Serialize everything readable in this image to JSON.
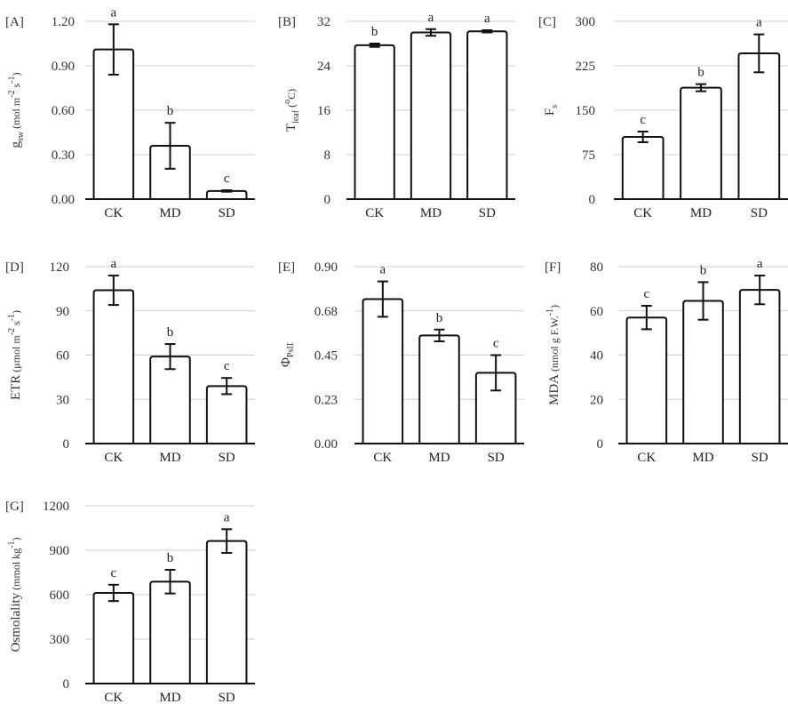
{
  "chart_data": [
    {
      "type": "bar",
      "panel_label": "[A]",
      "ylabel": {
        "main": "g",
        "sub": "sw",
        "unit": " (mol m",
        "sup1": "-2",
        "mid": " s",
        "sup2": "-1",
        "end": ")"
      },
      "categories": [
        "CK",
        "MD",
        "SD"
      ],
      "values": [
        1.01,
        0.36,
        0.055
      ],
      "errors": [
        0.17,
        0.155,
        0.005
      ],
      "significance": [
        "a",
        "b",
        "c"
      ],
      "ylim": [
        0,
        1.2
      ],
      "yticks": [
        "0.00",
        "0.30",
        "0.60",
        "0.90",
        "1.20"
      ],
      "grid": true
    },
    {
      "type": "bar",
      "panel_label": "[B]",
      "ylabel": {
        "main": "T",
        "sub": "leaf",
        "unit": " (",
        "sup1": "o",
        "mid": "C",
        "sup2": "",
        "end": ")"
      },
      "categories": [
        "CK",
        "MD",
        "SD"
      ],
      "values": [
        27.7,
        30.0,
        30.2
      ],
      "errors": [
        0.3,
        0.6,
        0.2
      ],
      "significance": [
        "b",
        "a",
        "a"
      ],
      "ylim": [
        0,
        32
      ],
      "yticks": [
        "0",
        "8",
        "16",
        "24",
        "32"
      ],
      "grid": true
    },
    {
      "type": "bar",
      "panel_label": "[C]",
      "ylabel": {
        "main": "F",
        "sub": "s",
        "unit": "",
        "sup1": "",
        "mid": "",
        "sup2": "",
        "end": ""
      },
      "categories": [
        "CK",
        "MD",
        "SD"
      ],
      "values": [
        105,
        188,
        246
      ],
      "errors": [
        9,
        6,
        32
      ],
      "significance": [
        "c",
        "b",
        "a"
      ],
      "ylim": [
        0,
        300
      ],
      "yticks": [
        "0",
        "75",
        "150",
        "225",
        "300"
      ],
      "grid": true
    },
    {
      "type": "bar",
      "panel_label": "[D]",
      "ylabel": {
        "main": "ETR",
        "sub": "",
        "unit": " (μmol m",
        "sup1": "-2",
        "mid": " s",
        "sup2": "-1",
        "end": ")"
      },
      "categories": [
        "CK",
        "MD",
        "SD"
      ],
      "values": [
        104,
        59,
        39
      ],
      "errors": [
        10,
        8.5,
        5.5
      ],
      "significance": [
        "a",
        "b",
        "c"
      ],
      "ylim": [
        0,
        120
      ],
      "yticks": [
        "0",
        "30",
        "60",
        "90",
        "120"
      ],
      "grid": true
    },
    {
      "type": "bar",
      "panel_label": "[E]",
      "ylabel": {
        "main": "Φ",
        "sub": "PsII",
        "unit": "",
        "sup1": "",
        "mid": "",
        "sup2": "",
        "end": ""
      },
      "categories": [
        "CK",
        "MD",
        "SD"
      ],
      "values": [
        0.735,
        0.55,
        0.36
      ],
      "errors": [
        0.09,
        0.03,
        0.09
      ],
      "significance": [
        "a",
        "b",
        "c"
      ],
      "ylim": [
        0,
        0.9
      ],
      "yticks": [
        "0.00",
        "0.23",
        "0.45",
        "0.68",
        "0.90"
      ],
      "grid": true
    },
    {
      "type": "bar",
      "panel_label": "[F]",
      "ylabel": {
        "main": "MDA",
        "sub": "",
        "unit": " (nmol g F.W.",
        "sup1": "-1",
        "mid": "",
        "sup2": "",
        "end": ")"
      },
      "categories": [
        "CK",
        "MD",
        "SD"
      ],
      "values": [
        57,
        64.5,
        69.5
      ],
      "errors": [
        5.3,
        8.5,
        6.5
      ],
      "significance": [
        "c",
        "b",
        "a"
      ],
      "ylim": [
        0,
        80
      ],
      "yticks": [
        "0",
        "20",
        "40",
        "60",
        "80"
      ],
      "grid": true
    },
    {
      "type": "bar",
      "panel_label": "[G]",
      "ylabel": {
        "main": "Osmolality",
        "sub": "",
        "unit": " (mmol kg",
        "sup1": "-1",
        "mid": "",
        "sup2": "",
        "end": ")"
      },
      "categories": [
        "CK",
        "MD",
        "SD"
      ],
      "values": [
        612,
        688,
        962
      ],
      "errors": [
        55,
        80,
        80
      ],
      "significance": [
        "c",
        "b",
        "a"
      ],
      "ylim": [
        0,
        1200
      ],
      "yticks": [
        "0",
        "300",
        "600",
        "900",
        "1200"
      ],
      "grid": true
    }
  ]
}
